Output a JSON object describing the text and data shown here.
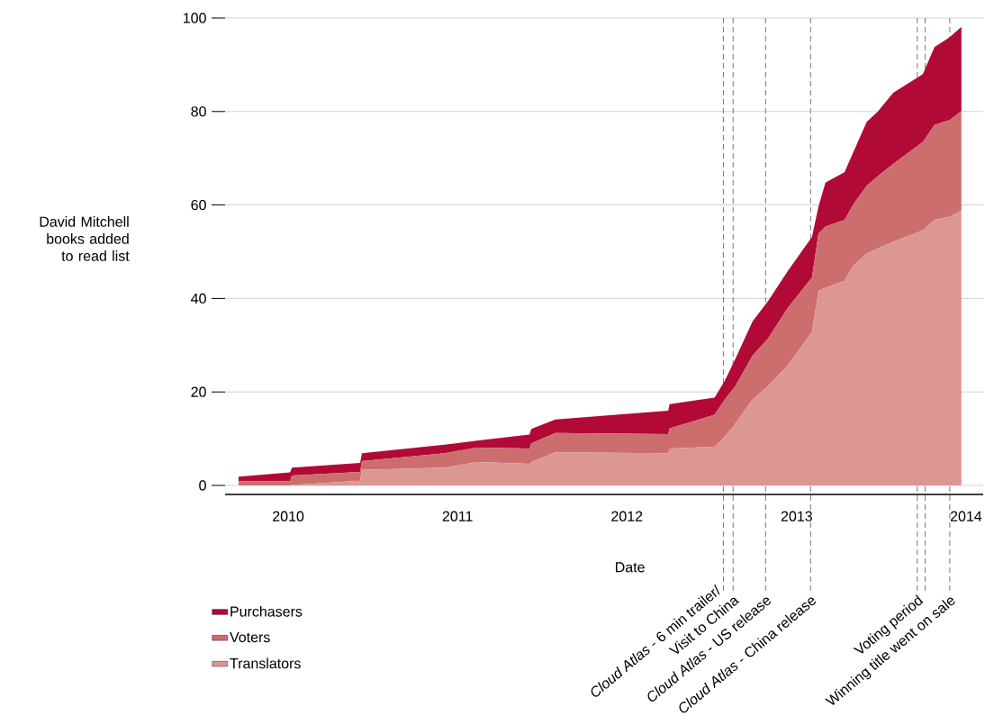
{
  "chart_data": {
    "type": "area",
    "stacked": true,
    "ylabel": "David Mitchell books added to read list",
    "xlabel": "Date",
    "x": [
      "2009-09-16",
      "2010-01-05",
      "2010-01-09",
      "2010-06-05",
      "2010-06-09",
      "2010-12-04",
      "2011-02-12",
      "2011-06-05",
      "2011-06-09",
      "2011-07-31",
      "2012-03-30",
      "2012-04-02",
      "2012-07-08",
      "2012-07-30",
      "2012-08-22",
      "2012-09-28",
      "2012-10-31",
      "2012-12-13",
      "2013-02-03",
      "2013-02-17",
      "2013-03-04",
      "2013-04-14",
      "2013-05-03",
      "2013-06-01",
      "2013-06-25",
      "2013-07-28",
      "2013-09-30",
      "2013-10-25",
      "2013-11-27",
      "2013-12-22"
    ],
    "series": [
      {
        "name": "Translators",
        "color": "#dc9793",
        "values": [
          0,
          0,
          0.1,
          1.0,
          3.3,
          3.8,
          5.0,
          4.6,
          5.0,
          7.1,
          6.9,
          7.9,
          8.3,
          10.4,
          13.3,
          18.4,
          21.3,
          25.7,
          32.9,
          41.6,
          42.3,
          43.8,
          47.0,
          49.6,
          50.7,
          52.1,
          54.6,
          56.8,
          57.5,
          58.8
        ]
      },
      {
        "name": "Voters",
        "color": "#cc6e6e",
        "values": [
          0.9,
          0.9,
          2.0,
          1.9,
          1.9,
          3.1,
          3.1,
          3.3,
          4.0,
          4.1,
          4.1,
          4.3,
          6.8,
          8.0,
          8.0,
          9.4,
          10.1,
          12.3,
          11.6,
          12.3,
          13.1,
          13.0,
          13.1,
          14.5,
          15.5,
          16.7,
          18.9,
          20.3,
          20.7,
          21.3
        ]
      },
      {
        "name": "Purchasers",
        "color": "#b10a37",
        "values": [
          1.0,
          1.9,
          1.7,
          1.9,
          1.7,
          1.8,
          1.5,
          3.0,
          3.1,
          2.9,
          5.0,
          5.2,
          3.7,
          4.0,
          5.8,
          7.3,
          8.0,
          7.9,
          8.7,
          5.8,
          9.4,
          10.2,
          11.2,
          13.7,
          13.8,
          15.2,
          14.5,
          16.7,
          17.7,
          18.0
        ]
      }
    ],
    "xlim": [
      "2009-08-18",
      "2014-02-07"
    ],
    "xticks": [
      {
        "value": "2010-01-01",
        "label": "2010"
      },
      {
        "value": "2011-01-01",
        "label": "2011"
      },
      {
        "value": "2012-01-01",
        "label": "2012"
      },
      {
        "value": "2013-01-01",
        "label": "2013"
      },
      {
        "value": "2014-01-01",
        "label": "2014"
      }
    ],
    "ylim": [
      0,
      100
    ],
    "yticks": [
      0,
      20,
      40,
      60,
      80,
      100
    ],
    "grid": "y",
    "legend": "bottom left",
    "ref_lines": [
      {
        "axis": "x",
        "value": "2012-07-27",
        "label": "*Cloud Atlas* - 6 min trailer/",
        "color": "#666666",
        "line_style": "dashed"
      },
      {
        "axis": "x",
        "value": "2012-08-17",
        "label": "Visit to China",
        "color": "#666666",
        "line_style": "dashed"
      },
      {
        "axis": "x",
        "value": "2012-10-26",
        "label": "*Cloud Atlas* - US release",
        "color": "#666666",
        "line_style": "dashed"
      },
      {
        "axis": "x",
        "value": "2013-01-31",
        "label": "*Cloud Atlas* - China release",
        "color": "#666666",
        "line_style": "dashed"
      },
      {
        "axis": "x",
        "value": "2013-09-18",
        "label": "Voting period",
        "color": "#666666",
        "line_style": "dashed"
      },
      {
        "axis": "x",
        "value": "2013-10-05",
        "label": null,
        "color": "#666666",
        "line_style": "dashed"
      },
      {
        "axis": "x",
        "value": "2013-11-27",
        "label": "Winning title went on sale",
        "color": "#666666",
        "line_style": "dashed"
      }
    ]
  }
}
